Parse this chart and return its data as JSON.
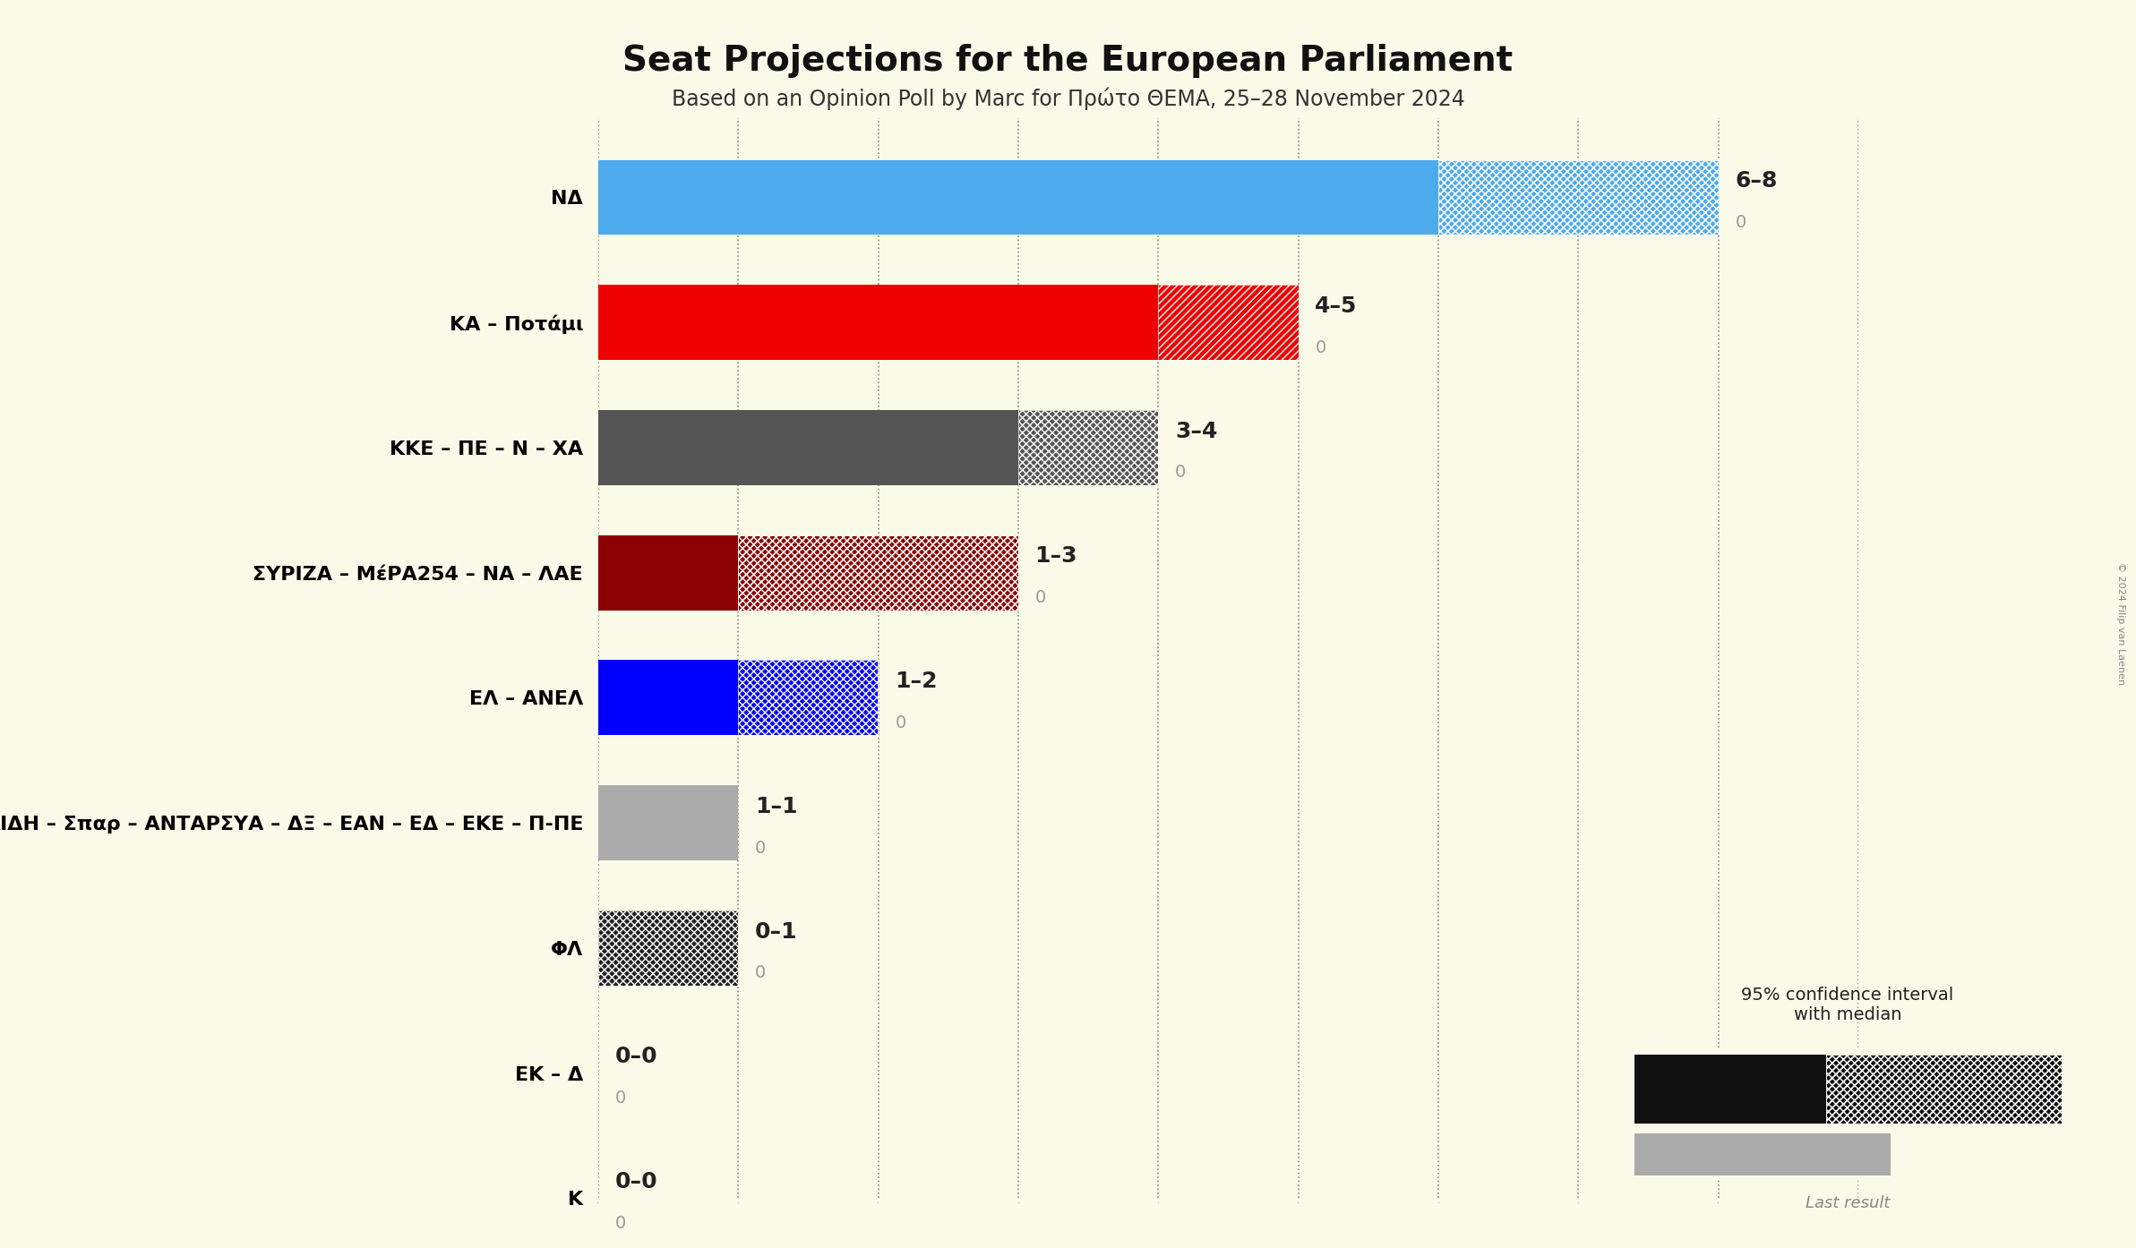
{
  "title": "Seat Projections for the European Parliament",
  "subtitle": "Based on an Opinion Poll by Marc for Πρώτο ΘΕΜΑ, 25–28 November 2024",
  "background_color": "#FAFAE8",
  "parties": [
    {
      "name": "ΝΔ",
      "median": 6,
      "low": 6,
      "high": 8,
      "last": 0,
      "color": "#4DAAED",
      "hatch_ci": "xxxx////",
      "label": "6–8"
    },
    {
      "name": "ΚΑ – Ποτάμι",
      "median": 4,
      "low": 4,
      "high": 5,
      "last": 0,
      "color": "#EE0000",
      "hatch_ci": "////",
      "label": "4–5"
    },
    {
      "name": "ΚΚΕ – ΠΕ – Ν – ΧΑ",
      "median": 3,
      "low": 3,
      "high": 4,
      "last": 0,
      "color": "#555555",
      "hatch_ci": "xxxx",
      "label": "3–4"
    },
    {
      "name": "ΣΥΡΙΖΑ – ΜέΡΑ254 – ΝΑ – ΛΑΕ",
      "median": 1,
      "low": 1,
      "high": 3,
      "last": 0,
      "color": "#8B0000",
      "hatch_ci": "xxxx////",
      "label": "1–3"
    },
    {
      "name": "ΕΛ – ΑΝΕΛ",
      "median": 1,
      "low": 1,
      "high": 2,
      "last": 0,
      "color": "#0000FF",
      "hatch_ci": "xxxx",
      "label": "1–2"
    },
    {
      "name": "ΚΙΔΗ – Σπαρ – ΑΝΤΑΡΣΥΑ – ΔΞ – ΕΑΝ – ΕΔ – ΕΚΕ – Π-ΠΕ",
      "median": 1,
      "low": 1,
      "high": 1,
      "last": 0,
      "color": "#AAAAAA",
      "hatch_ci": "",
      "label": "1–1"
    },
    {
      "name": "ΦΛ",
      "median": 0,
      "low": 0,
      "high": 1,
      "last": 0,
      "color": "#222222",
      "hatch_ci": "xxxx",
      "label": "0–1"
    },
    {
      "name": "ΕΚ – Δ",
      "median": 0,
      "low": 0,
      "high": 0,
      "last": 0,
      "color": "#888888",
      "hatch_ci": "",
      "label": "0–0"
    },
    {
      "name": "Κ",
      "median": 0,
      "low": 0,
      "high": 0,
      "last": 0,
      "color": "#888888",
      "hatch_ci": "",
      "label": "0–0"
    }
  ],
  "party_names_display": [
    "ΝΔ",
    "ΚΑ – Ποτάμι",
    "ΚΚΕ – ΠΕ – Ν – ΧΑ",
    "ΣΥΡΙΖΑ – ΜέΡΑ254 – ΝΑ – ΛΑΕ",
    "ΕΛ – ΑΝΕΛ",
    "ΚΙΔΗ – Σπαρ – ΑΝΤΑΡΣΥΑ – ΔΞ – ΕΑΝ – ΕΔ – ΕΚΕ – Π-ΠΕ",
    "ΦΛ",
    "ΕΚ – Δ",
    "Κ"
  ],
  "xlim": [
    0,
    9
  ],
  "xticks": [
    0,
    1,
    2,
    3,
    4,
    5,
    6,
    7,
    8,
    9
  ],
  "copyright": "© 2024 Filip van Laenen",
  "bar_height": 0.6
}
